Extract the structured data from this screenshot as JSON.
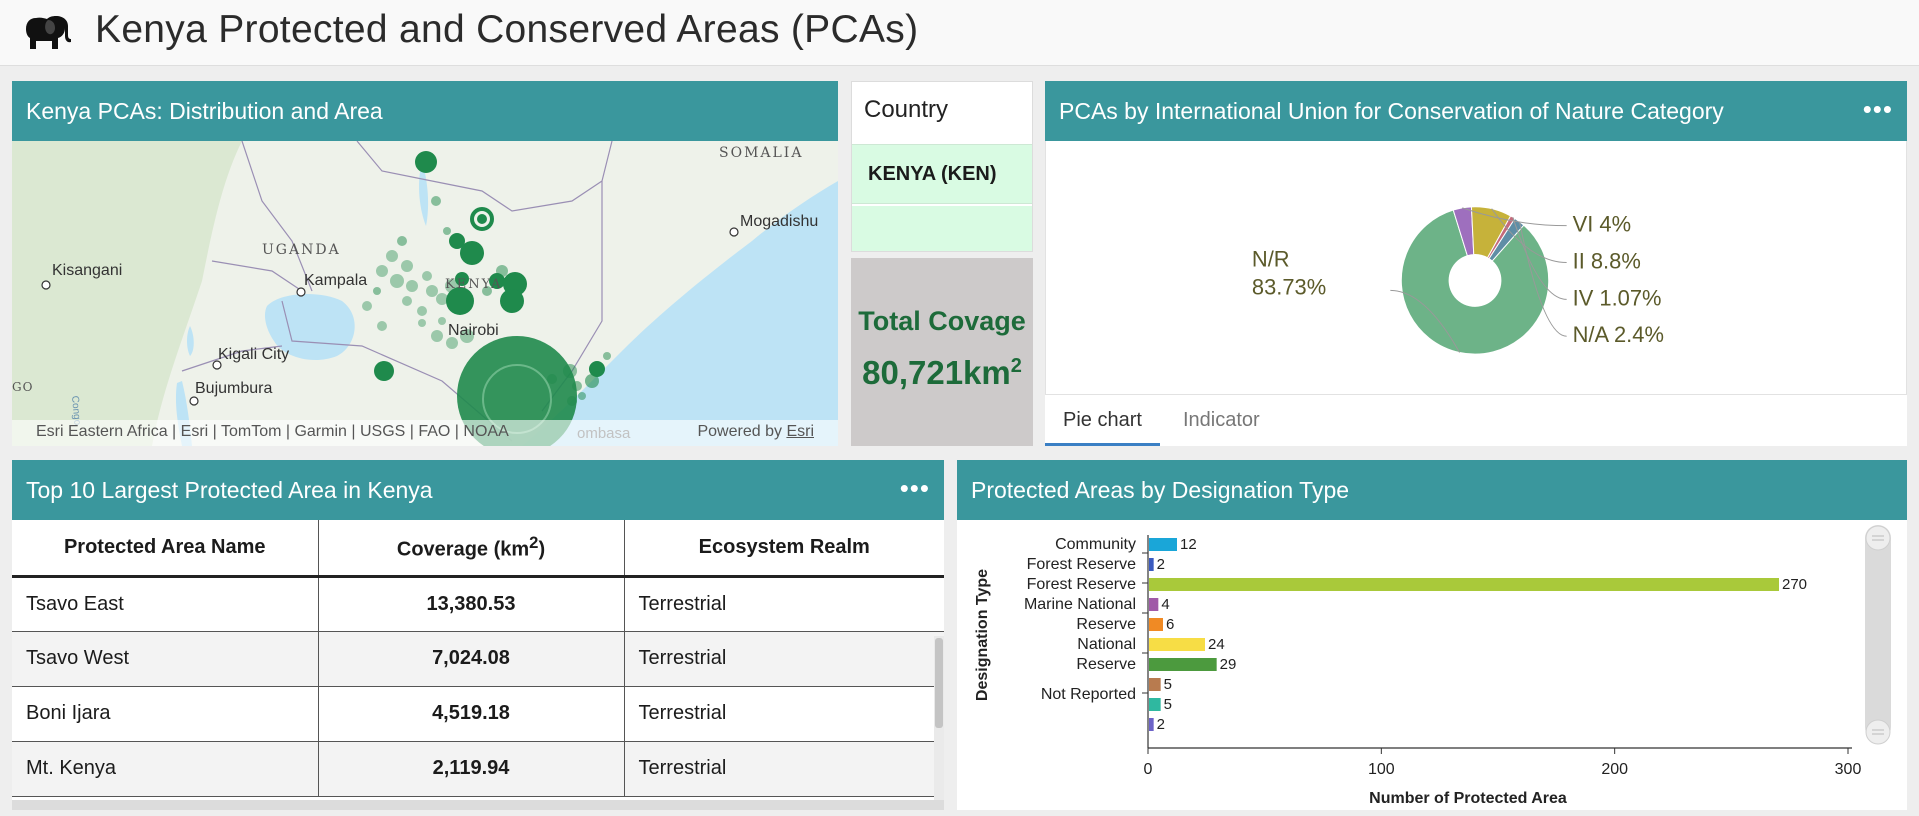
{
  "app": {
    "title": "Kenya Protected and Conserved Areas (PCAs)",
    "logo_icon": "elephant-icon"
  },
  "map": {
    "title": "Kenya PCAs: Distribution and Area",
    "labels": {
      "somalia": "SOMALIA",
      "uganda": "UGANDA",
      "kenya": "KENYA",
      "kisangani": "Kisangani",
      "kampala": "Kampala",
      "nairobi": "Nairobi",
      "mogadishu": "Mogadishu",
      "kigali": "Kigali City",
      "bujumbura": "Bujumbura",
      "congo": "Congo",
      "edge": "GO",
      "mombasa": "ombasa"
    },
    "attribution": "Esri Eastern Africa | Esri | TomTom | Garmin | USGS | FAO | NOAA",
    "powered_by": "Powered by",
    "powered_by_link": "Esri",
    "colors": {
      "water": "#bde3f5",
      "land": "#eef2ea",
      "marker": "#1f8a4c"
    }
  },
  "country": {
    "title": "Country",
    "selected": "KENYA (KEN)"
  },
  "total": {
    "label": "Total Covage",
    "value": "80,721km",
    "unit_sup": "2"
  },
  "pie": {
    "title": "PCAs by International Union for Conservation of Nature Category",
    "tabs": [
      "Pie chart",
      "Indicator"
    ],
    "active_tab": "Pie chart"
  },
  "table": {
    "title": "Top 10 Largest Protected Area in Kenya",
    "headers": [
      "Protected Area Name",
      "Coverage (km",
      "Ecosystem Realm"
    ],
    "header_sup": "2",
    "header_close": ")",
    "rows": [
      {
        "name": "Tsavo East",
        "coverage": "13,380.53",
        "realm": "Terrestrial"
      },
      {
        "name": "Tsavo West",
        "coverage": "7,024.08",
        "realm": "Terrestrial"
      },
      {
        "name": "Boni Ijara",
        "coverage": "4,519.18",
        "realm": "Terrestrial"
      },
      {
        "name": "Mt. Kenya",
        "coverage": "2,119.94",
        "realm": "Terrestrial"
      }
    ]
  },
  "bar": {
    "title": "Protected Areas by Designation Type"
  },
  "chart_data": [
    {
      "type": "pie",
      "title": "",
      "donut": true,
      "slices": [
        {
          "label": "N/R",
          "percent": "83.73%",
          "value": 83.73,
          "color": "#6db388"
        },
        {
          "label": "VI",
          "percent": "4%",
          "value": 4.0,
          "color": "#9e6fbe"
        },
        {
          "label": "II",
          "percent": "8.8%",
          "value": 8.8,
          "color": "#c6b23a"
        },
        {
          "label": "IV",
          "percent": "1.07%",
          "value": 1.07,
          "color": "#c46a7b"
        },
        {
          "label": "N/A",
          "percent": "2.4%",
          "value": 2.4,
          "color": "#5f8ea6"
        }
      ]
    },
    {
      "type": "bar",
      "orientation": "horizontal",
      "xlabel": "Number of Protected Area",
      "ylabel": "Designation Type",
      "xlim": [
        0,
        300
      ],
      "xticks": [
        0,
        100,
        200,
        300
      ],
      "category_labels": [
        {
          "lines": [
            "Community",
            "Forest Reserve"
          ],
          "at": 0.5
        },
        {
          "lines": [
            "Forest Reserve"
          ],
          "at": 2
        },
        {
          "lines": [
            "Marine National",
            "Reserve"
          ],
          "at": 3.5
        },
        {
          "lines": [
            "National",
            "Reserve"
          ],
          "at": 5.5
        },
        {
          "lines": [
            "Not Reported"
          ],
          "at": 7.5
        }
      ],
      "bars": [
        {
          "value": 12,
          "color": "#1aa6d8"
        },
        {
          "value": 2,
          "color": "#3b5bc0"
        },
        {
          "value": 270,
          "color": "#a9c93a"
        },
        {
          "value": 4,
          "color": "#a05aa8"
        },
        {
          "value": 6,
          "color": "#f08a24"
        },
        {
          "value": 24,
          "color": "#f7dd45"
        },
        {
          "value": 29,
          "color": "#4c9a3e"
        },
        {
          "value": 5,
          "color": "#b87b4f"
        },
        {
          "value": 5,
          "color": "#2fb8a0"
        },
        {
          "value": 2,
          "color": "#6c63c8"
        }
      ]
    }
  ]
}
